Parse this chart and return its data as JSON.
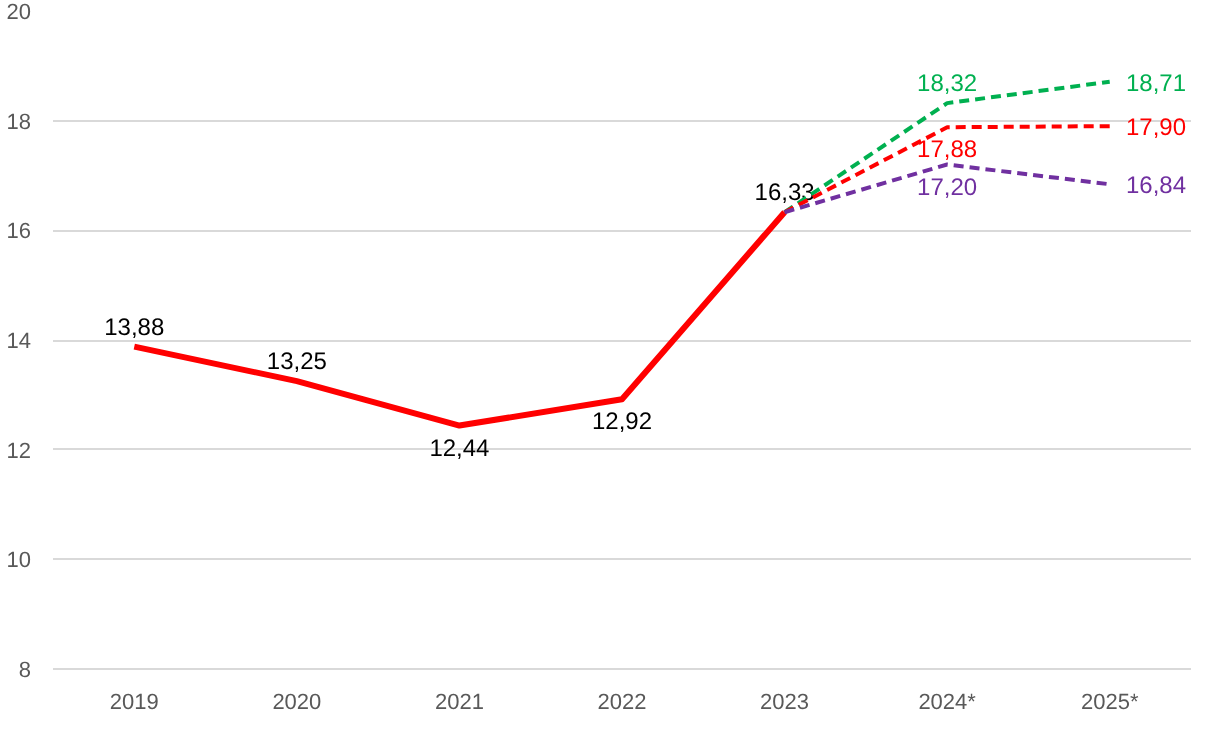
{
  "chart_data": {
    "type": "line",
    "categories": [
      "2019",
      "2020",
      "2021",
      "2022",
      "2023",
      "2024*",
      "2025*"
    ],
    "ylim": [
      8,
      20
    ],
    "yticks": [
      8,
      10,
      12,
      14,
      16,
      18,
      20
    ],
    "grid": "y",
    "marker": "none",
    "series": [
      {
        "color": "#ff0000",
        "line_style": "solid",
        "values": [
          13.88,
          13.25,
          12.44,
          12.92,
          16.33,
          null,
          null
        ],
        "value_labels": [
          "13,88",
          "13,25",
          "12,44",
          "12,92",
          "16,33",
          null,
          null
        ]
      },
      {
        "color": "#00b050",
        "line_style": "dashed",
        "values": [
          null,
          null,
          null,
          null,
          16.33,
          18.32,
          18.71
        ],
        "value_labels": [
          null,
          null,
          null,
          null,
          null,
          "18,32",
          "18,71"
        ]
      },
      {
        "color": "#ff0000",
        "line_style": "dashed",
        "values": [
          null,
          null,
          null,
          null,
          16.33,
          17.88,
          17.9
        ],
        "value_labels": [
          null,
          null,
          null,
          null,
          null,
          "17,88",
          "17,90"
        ]
      },
      {
        "color": "#7030a0",
        "line_style": "dashed",
        "values": [
          null,
          null,
          null,
          null,
          16.33,
          17.2,
          16.84
        ],
        "value_labels": [
          null,
          null,
          null,
          null,
          null,
          "17,20",
          "16,84"
        ]
      }
    ]
  }
}
